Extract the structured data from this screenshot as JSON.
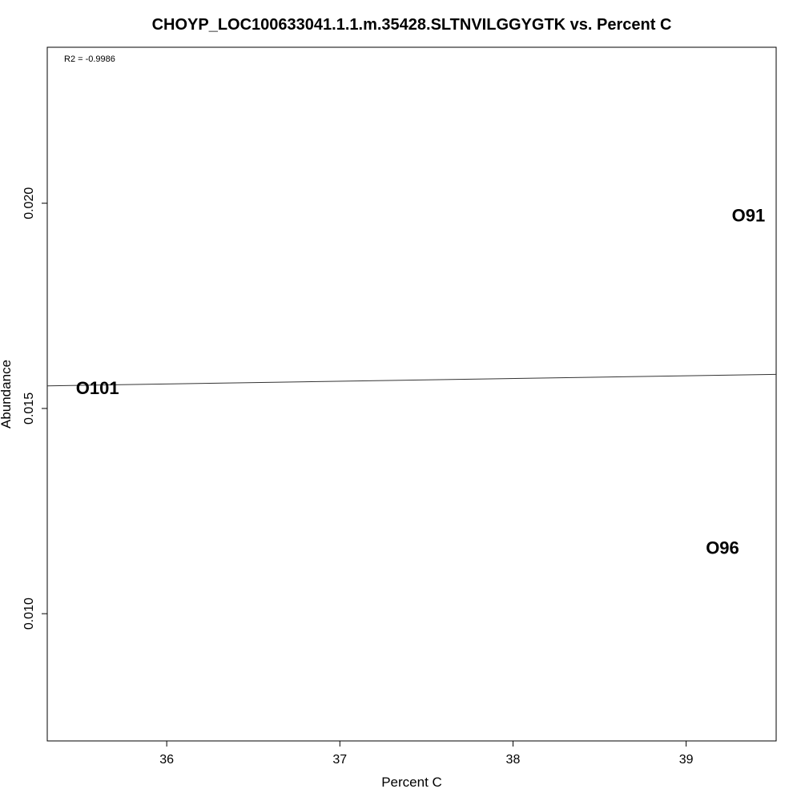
{
  "chart_data": {
    "type": "scatter",
    "title": "CHOYP_LOC100633041.1.1.m.35428.SLTNVILGGYGTK vs. Percent C",
    "xlabel": "Percent C",
    "ylabel": "Abundance",
    "annotation": "R2 = -0.9986",
    "xlim": [
      35.31,
      39.52
    ],
    "ylim": [
      0.0069,
      0.0238
    ],
    "xticks": [
      36,
      37,
      38,
      39
    ],
    "yticks": [
      0.01,
      0.015,
      0.02
    ],
    "xtick_labels": [
      "36",
      "37",
      "38",
      "39"
    ],
    "ytick_labels": [
      "0.010",
      "0.015",
      "0.020"
    ],
    "points": [
      {
        "label": "O101",
        "x": 35.6,
        "y": 0.0155
      },
      {
        "label": "O91",
        "x": 39.36,
        "y": 0.0197
      },
      {
        "label": "O96",
        "x": 39.21,
        "y": 0.0116
      }
    ],
    "fit_line": {
      "x": [
        35.31,
        39.52
      ],
      "y": [
        0.01555,
        0.01583
      ]
    },
    "grid": false
  }
}
